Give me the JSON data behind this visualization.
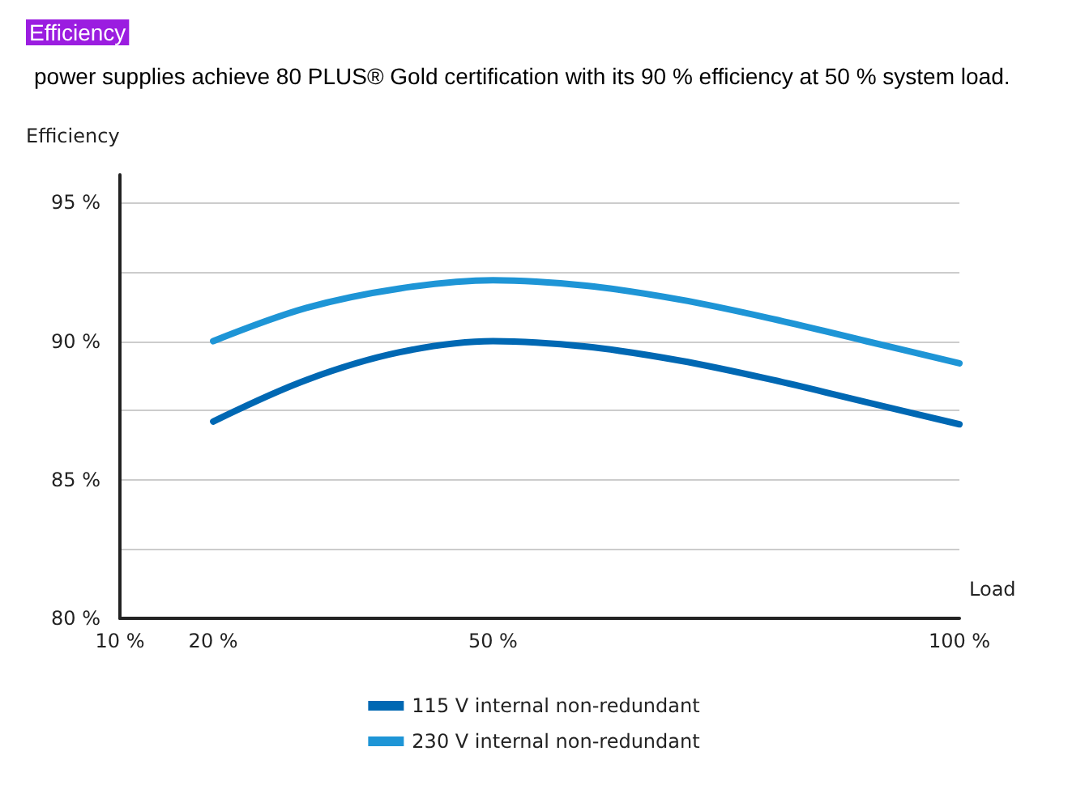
{
  "chart_data": {
    "type": "line",
    "title": "Efficiency",
    "subtitle": "power supplies achieve 80 PLUS® Gold certification with its 90 % efficiency at 50 % system load.",
    "xlabel": "Load",
    "ylabel": "Efficiency",
    "x": [
      20,
      30,
      40,
      50,
      60,
      70,
      80,
      90,
      100
    ],
    "series": [
      {
        "name": "115 V internal non-redundant",
        "color": "#0068b3",
        "values": [
          87.1,
          88.6,
          89.6,
          90.0,
          89.8,
          89.3,
          88.6,
          87.8,
          87.0
        ]
      },
      {
        "name": "230 V internal non-redundant",
        "color": "#1e95d6",
        "values": [
          90.0,
          91.2,
          91.9,
          92.2,
          92.0,
          91.5,
          90.8,
          90.0,
          89.2
        ]
      }
    ],
    "xlim": [
      10,
      100
    ],
    "xticks": [
      {
        "value": 10,
        "label": "10 %"
      },
      {
        "value": 20,
        "label": "20 %"
      },
      {
        "value": 50,
        "label": "50 %"
      },
      {
        "value": 100,
        "label": "100 %"
      }
    ],
    "ylim": [
      80,
      96
    ],
    "yticks": [
      {
        "value": 80,
        "label": "80 %"
      },
      {
        "value": 82.5,
        "label": null
      },
      {
        "value": 85,
        "label": "85 %"
      },
      {
        "value": 87.5,
        "label": null
      },
      {
        "value": 90,
        "label": "90 %"
      },
      {
        "value": 92.5,
        "label": null
      },
      {
        "value": 95,
        "label": "95 %"
      }
    ],
    "grid": "y",
    "legend": "bottom",
    "marker": "none",
    "line_style": "solid"
  }
}
